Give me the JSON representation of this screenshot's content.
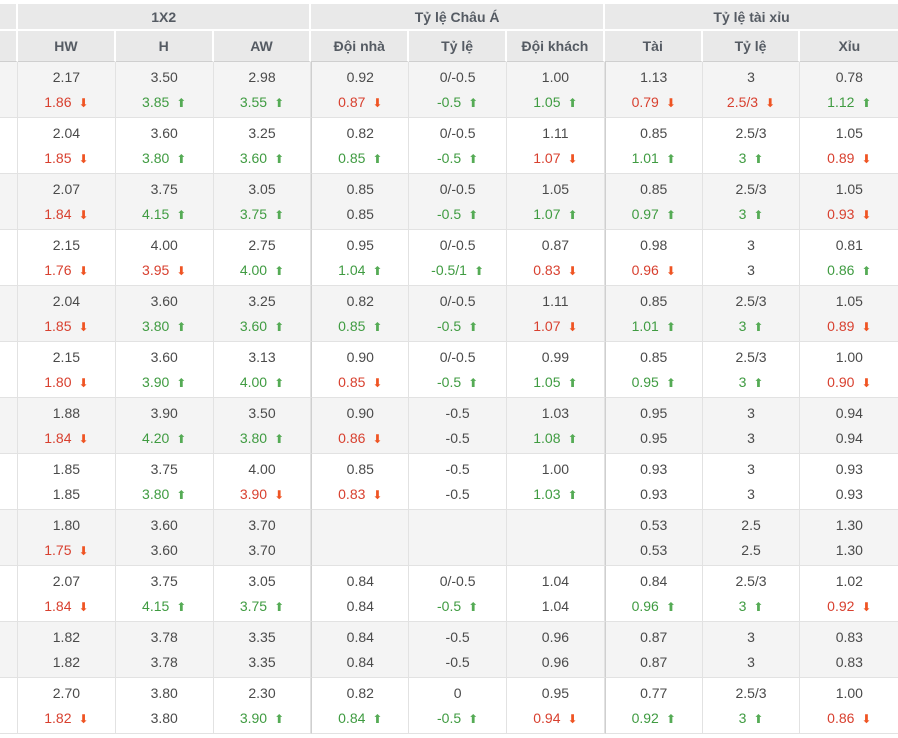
{
  "colors": {
    "header_bg": "#e9e9e9",
    "row_alt_bg": "#f4f4f4",
    "value_text": "#4a4a4a",
    "odds_up_green": "#3f9b41",
    "odds_down_red": "#d8402f",
    "arrow_up_green": "#55ab55",
    "arrow_down_red": "#ef5423"
  },
  "table": {
    "groups": [
      {
        "label": "1X2"
      },
      {
        "label": "Tỷ lệ Châu Á"
      },
      {
        "label": "Tỷ lệ tài xỉu"
      }
    ],
    "columns": [
      "HW",
      "H",
      "AW",
      "Đội nhà",
      "Tỷ lệ",
      "Đội khách",
      "Tài",
      "Tỷ lệ",
      "Xỉu"
    ],
    "trend_icons": {
      "up": "⬆",
      "down": "⬇"
    },
    "rows": [
      {
        "cells": [
          {
            "t": "2.17",
            "b": "1.86",
            "d": "dn"
          },
          {
            "t": "3.50",
            "b": "3.85",
            "d": "up"
          },
          {
            "t": "2.98",
            "b": "3.55",
            "d": "up"
          },
          {
            "t": "0.92",
            "b": "0.87",
            "d": "dn"
          },
          {
            "t": "0/-0.5",
            "b": "-0.5",
            "d": "up"
          },
          {
            "t": "1.00",
            "b": "1.05",
            "d": "up"
          },
          {
            "t": "1.13",
            "b": "0.79",
            "d": "dn"
          },
          {
            "t": "3",
            "b": "2.5/3",
            "d": "dn"
          },
          {
            "t": "0.78",
            "b": "1.12",
            "d": "up"
          }
        ]
      },
      {
        "cells": [
          {
            "t": "2.04",
            "b": "1.85",
            "d": "dn"
          },
          {
            "t": "3.60",
            "b": "3.80",
            "d": "up"
          },
          {
            "t": "3.25",
            "b": "3.60",
            "d": "up"
          },
          {
            "t": "0.82",
            "b": "0.85",
            "d": "up"
          },
          {
            "t": "0/-0.5",
            "b": "-0.5",
            "d": "up"
          },
          {
            "t": "1.11",
            "b": "1.07",
            "d": "dn"
          },
          {
            "t": "0.85",
            "b": "1.01",
            "d": "up"
          },
          {
            "t": "2.5/3",
            "b": "3",
            "d": "up"
          },
          {
            "t": "1.05",
            "b": "0.89",
            "d": "dn"
          }
        ]
      },
      {
        "cells": [
          {
            "t": "2.07",
            "b": "1.84",
            "d": "dn"
          },
          {
            "t": "3.75",
            "b": "4.15",
            "d": "up"
          },
          {
            "t": "3.05",
            "b": "3.75",
            "d": "up"
          },
          {
            "t": "0.85",
            "b": "0.85",
            "d": ""
          },
          {
            "t": "0/-0.5",
            "b": "-0.5",
            "d": "up"
          },
          {
            "t": "1.05",
            "b": "1.07",
            "d": "up"
          },
          {
            "t": "0.85",
            "b": "0.97",
            "d": "up"
          },
          {
            "t": "2.5/3",
            "b": "3",
            "d": "up"
          },
          {
            "t": "1.05",
            "b": "0.93",
            "d": "dn"
          }
        ]
      },
      {
        "cells": [
          {
            "t": "2.15",
            "b": "1.76",
            "d": "dn"
          },
          {
            "t": "4.00",
            "b": "3.95",
            "d": "dn"
          },
          {
            "t": "2.75",
            "b": "4.00",
            "d": "up"
          },
          {
            "t": "0.95",
            "b": "1.04",
            "d": "up"
          },
          {
            "t": "0/-0.5",
            "b": "-0.5/1",
            "d": "up"
          },
          {
            "t": "0.87",
            "b": "0.83",
            "d": "dn"
          },
          {
            "t": "0.98",
            "b": "0.96",
            "d": "dn"
          },
          {
            "t": "3",
            "b": "3",
            "d": ""
          },
          {
            "t": "0.81",
            "b": "0.86",
            "d": "up"
          }
        ]
      },
      {
        "cells": [
          {
            "t": "2.04",
            "b": "1.85",
            "d": "dn"
          },
          {
            "t": "3.60",
            "b": "3.80",
            "d": "up"
          },
          {
            "t": "3.25",
            "b": "3.60",
            "d": "up"
          },
          {
            "t": "0.82",
            "b": "0.85",
            "d": "up"
          },
          {
            "t": "0/-0.5",
            "b": "-0.5",
            "d": "up"
          },
          {
            "t": "1.11",
            "b": "1.07",
            "d": "dn"
          },
          {
            "t": "0.85",
            "b": "1.01",
            "d": "up"
          },
          {
            "t": "2.5/3",
            "b": "3",
            "d": "up"
          },
          {
            "t": "1.05",
            "b": "0.89",
            "d": "dn"
          }
        ]
      },
      {
        "cells": [
          {
            "t": "2.15",
            "b": "1.80",
            "d": "dn"
          },
          {
            "t": "3.60",
            "b": "3.90",
            "d": "up"
          },
          {
            "t": "3.13",
            "b": "4.00",
            "d": "up"
          },
          {
            "t": "0.90",
            "b": "0.85",
            "d": "dn"
          },
          {
            "t": "0/-0.5",
            "b": "-0.5",
            "d": "up"
          },
          {
            "t": "0.99",
            "b": "1.05",
            "d": "up"
          },
          {
            "t": "0.85",
            "b": "0.95",
            "d": "up"
          },
          {
            "t": "2.5/3",
            "b": "3",
            "d": "up"
          },
          {
            "t": "1.00",
            "b": "0.90",
            "d": "dn"
          }
        ]
      },
      {
        "cells": [
          {
            "t": "1.88",
            "b": "1.84",
            "d": "dn"
          },
          {
            "t": "3.90",
            "b": "4.20",
            "d": "up"
          },
          {
            "t": "3.50",
            "b": "3.80",
            "d": "up"
          },
          {
            "t": "0.90",
            "b": "0.86",
            "d": "dn"
          },
          {
            "t": "-0.5",
            "b": "-0.5",
            "d": ""
          },
          {
            "t": "1.03",
            "b": "1.08",
            "d": "up"
          },
          {
            "t": "0.95",
            "b": "0.95",
            "d": ""
          },
          {
            "t": "3",
            "b": "3",
            "d": ""
          },
          {
            "t": "0.94",
            "b": "0.94",
            "d": ""
          }
        ]
      },
      {
        "cells": [
          {
            "t": "1.85",
            "b": "1.85",
            "d": ""
          },
          {
            "t": "3.75",
            "b": "3.80",
            "d": "up"
          },
          {
            "t": "4.00",
            "b": "3.90",
            "d": "dn"
          },
          {
            "t": "0.85",
            "b": "0.83",
            "d": "dn"
          },
          {
            "t": "-0.5",
            "b": "-0.5",
            "d": ""
          },
          {
            "t": "1.00",
            "b": "1.03",
            "d": "up"
          },
          {
            "t": "0.93",
            "b": "0.93",
            "d": ""
          },
          {
            "t": "3",
            "b": "3",
            "d": ""
          },
          {
            "t": "0.93",
            "b": "0.93",
            "d": ""
          }
        ]
      },
      {
        "cells": [
          {
            "t": "1.80",
            "b": "1.75",
            "d": "dn"
          },
          {
            "t": "3.60",
            "b": "3.60",
            "d": ""
          },
          {
            "t": "3.70",
            "b": "3.70",
            "d": ""
          },
          {
            "t": "",
            "b": "",
            "d": ""
          },
          {
            "t": "",
            "b": "",
            "d": ""
          },
          {
            "t": "",
            "b": "",
            "d": ""
          },
          {
            "t": "0.53",
            "b": "0.53",
            "d": ""
          },
          {
            "t": "2.5",
            "b": "2.5",
            "d": ""
          },
          {
            "t": "1.30",
            "b": "1.30",
            "d": ""
          }
        ]
      },
      {
        "cells": [
          {
            "t": "2.07",
            "b": "1.84",
            "d": "dn"
          },
          {
            "t": "3.75",
            "b": "4.15",
            "d": "up"
          },
          {
            "t": "3.05",
            "b": "3.75",
            "d": "up"
          },
          {
            "t": "0.84",
            "b": "0.84",
            "d": ""
          },
          {
            "t": "0/-0.5",
            "b": "-0.5",
            "d": "up"
          },
          {
            "t": "1.04",
            "b": "1.04",
            "d": ""
          },
          {
            "t": "0.84",
            "b": "0.96",
            "d": "up"
          },
          {
            "t": "2.5/3",
            "b": "3",
            "d": "up"
          },
          {
            "t": "1.02",
            "b": "0.92",
            "d": "dn"
          }
        ]
      },
      {
        "cells": [
          {
            "t": "1.82",
            "b": "1.82",
            "d": ""
          },
          {
            "t": "3.78",
            "b": "3.78",
            "d": ""
          },
          {
            "t": "3.35",
            "b": "3.35",
            "d": ""
          },
          {
            "t": "0.84",
            "b": "0.84",
            "d": ""
          },
          {
            "t": "-0.5",
            "b": "-0.5",
            "d": ""
          },
          {
            "t": "0.96",
            "b": "0.96",
            "d": ""
          },
          {
            "t": "0.87",
            "b": "0.87",
            "d": ""
          },
          {
            "t": "3",
            "b": "3",
            "d": ""
          },
          {
            "t": "0.83",
            "b": "0.83",
            "d": ""
          }
        ]
      },
      {
        "cells": [
          {
            "t": "2.70",
            "b": "1.82",
            "d": "dn"
          },
          {
            "t": "3.80",
            "b": "3.80",
            "d": ""
          },
          {
            "t": "2.30",
            "b": "3.90",
            "d": "up"
          },
          {
            "t": "0.82",
            "b": "0.84",
            "d": "up"
          },
          {
            "t": "0",
            "b": "-0.5",
            "d": "up"
          },
          {
            "t": "0.95",
            "b": "0.94",
            "d": "dn"
          },
          {
            "t": "0.77",
            "b": "0.92",
            "d": "up"
          },
          {
            "t": "2.5/3",
            "b": "3",
            "d": "up"
          },
          {
            "t": "1.00",
            "b": "0.86",
            "d": "dn"
          }
        ]
      }
    ]
  }
}
